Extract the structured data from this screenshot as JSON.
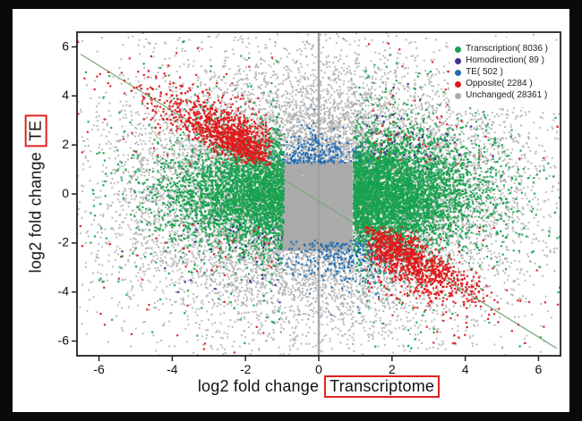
{
  "figure": {
    "background": "#000000",
    "panel_background": "#ffffff",
    "annotation_box_color": "#e02420"
  },
  "axes": {
    "x": {
      "prefix": "log2 fold change",
      "boxed": "Transcriptome"
    },
    "y": {
      "prefix": "log2 fold change",
      "boxed": "TE"
    }
  },
  "legend": {
    "position": "top-right",
    "items": [
      {
        "label": "Transcription( 8036 )",
        "color": "#17a24e"
      },
      {
        "label": "Homodirection( 89 )",
        "color": "#46318f"
      },
      {
        "label": "TE( 502 )",
        "color": "#1e6cb3"
      },
      {
        "label": "Opposite( 2284 )",
        "color": "#e0191b"
      },
      {
        "label": "Unchanged( 28361 )",
        "color": "#a9a9a9"
      }
    ]
  },
  "chart_data": {
    "type": "scatter",
    "title": "",
    "xlabel": "log2 fold change Transcriptome",
    "ylabel": "log2 fold change TE",
    "xlim": [
      -6.6,
      6.6
    ],
    "ylim": [
      -6.6,
      6.6
    ],
    "xticks": [
      -6,
      -4,
      -2,
      0,
      2,
      4,
      6
    ],
    "yticks": [
      -6,
      -4,
      -2,
      0,
      2,
      4,
      6
    ],
    "grid": false,
    "legend_position": "top-right",
    "reference_lines": [
      {
        "name": "zero-vertical-line",
        "type": "vline",
        "x": 0,
        "color": "#a0a0a0",
        "width": 2.5
      },
      {
        "name": "anti-diagonal-line",
        "type": "line",
        "x1": -6.5,
        "y1": 5.7,
        "x2": 6.5,
        "y2": -6.3,
        "color": "#7ba87b",
        "width": 1.4
      }
    ],
    "series": [
      {
        "name": "Unchanged",
        "count": 28361,
        "color": "#ababab",
        "alpha": 0.8,
        "size": 2,
        "clusters": [
          {
            "kind": "rect",
            "weight": 0.5,
            "x0": -1.03,
            "x1": 0.9,
            "y0": -2.3,
            "y1": 1.28
          },
          {
            "kind": "gauss",
            "weight": 0.5,
            "mx": 0,
            "my": 0,
            "sx": 2.7,
            "sy": 2.7
          }
        ]
      },
      {
        "name": "Transcription",
        "count": 8036,
        "color": "#17a24e",
        "alpha": 0.92,
        "size": 2.2,
        "clusters": [
          {
            "kind": "hband",
            "weight": 0.55,
            "dir": 1,
            "x0": 0.95,
            "xsig": 1.6,
            "ymu": 0,
            "ysig": 1.15
          },
          {
            "kind": "hband",
            "weight": 0.37,
            "dir": -1,
            "x0": 0.95,
            "xsig": 1.55,
            "ymu": 0,
            "ysig": 1.1
          },
          {
            "kind": "gauss",
            "weight": 0.08,
            "mx": 0,
            "my": 0,
            "sx": 3.2,
            "sy": 3.0,
            "min_abs_x": 1.05
          }
        ]
      },
      {
        "name": "TE",
        "count": 502,
        "color": "#1e6cb3",
        "alpha": 0.92,
        "size": 2.2,
        "clusters": [
          {
            "kind": "vband",
            "weight": 0.45,
            "dir": 1,
            "y0": 1.25,
            "ysig": 0.6,
            "xmu": -0.05,
            "xsig": 0.55
          },
          {
            "kind": "vband",
            "weight": 0.55,
            "dir": -1,
            "y0": 1.9,
            "ysig": 0.85,
            "xmu": 0.7,
            "xsig": 0.8
          }
        ]
      },
      {
        "name": "Opposite",
        "count": 2284,
        "color": "#e0191b",
        "alpha": 0.95,
        "size": 2.2,
        "clusters": [
          {
            "kind": "diag",
            "weight": 0.47,
            "dir": -1,
            "x0": 1.25,
            "tx": 0.85,
            "nx": 0.5,
            "y0": 1.15,
            "ty": 0.65,
            "ny": 0.85,
            "tsig": 1.5
          },
          {
            "kind": "diag",
            "weight": 0.45,
            "dir": 1,
            "x0": 1.25,
            "tx": 0.8,
            "nx": 0.5,
            "y0": 1.3,
            "ty": 0.7,
            "ny": 0.9,
            "tsig": 1.5
          },
          {
            "kind": "gauss",
            "weight": 0.08,
            "mx": 0,
            "my": 0,
            "sx": 3.5,
            "sy": 3.5,
            "min_abs_x": 1.2,
            "min_abs_y": 1.2
          }
        ]
      },
      {
        "name": "Homodirection",
        "count": 89,
        "color": "#46318f",
        "alpha": 1,
        "size": 2.2,
        "clusters": [
          {
            "kind": "gauss",
            "weight": 0.55,
            "mx": 2.3,
            "my": 2.1,
            "sx": 1.0,
            "sy": 0.9,
            "min_abs_x": 1.0,
            "min_abs_y": 1.0
          },
          {
            "kind": "gauss",
            "weight": 0.45,
            "mx": -2.3,
            "my": -2.3,
            "sx": 1.1,
            "sy": 1.0,
            "min_abs_x": 1.0,
            "min_abs_y": 1.0
          }
        ]
      }
    ]
  }
}
